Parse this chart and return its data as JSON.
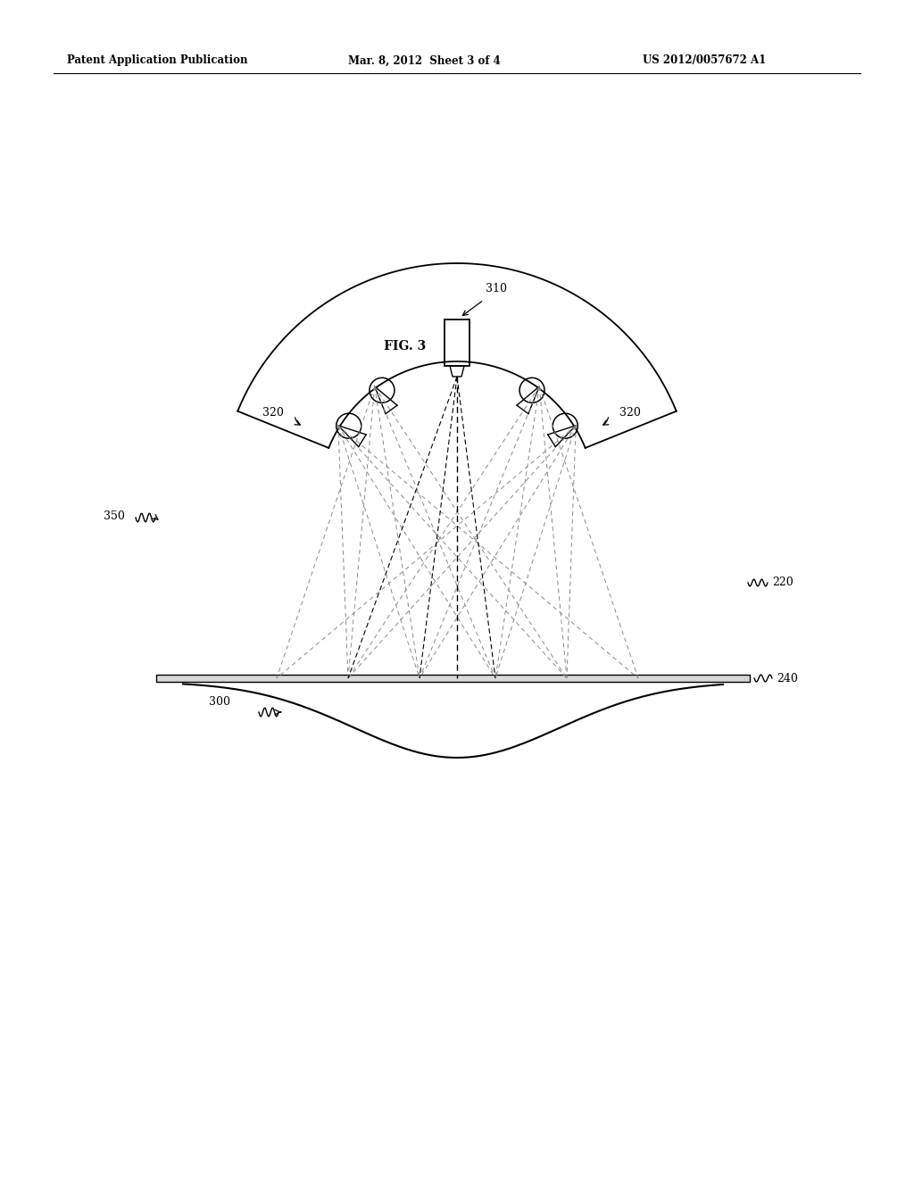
{
  "background_color": "#ffffff",
  "header_left": "Patent Application Publication",
  "header_mid": "Mar. 8, 2012  Sheet 3 of 4",
  "header_right": "US 2012/0057672 A1",
  "fig_label": "FIG. 3",
  "label_310": "310",
  "label_320_left": "320",
  "label_320_right": "320",
  "label_350": "350",
  "label_220": "220",
  "label_240": "240",
  "label_300": "300",
  "line_color": "#000000",
  "dashed_color": "#888888",
  "text_color": "#000000",
  "header_fontsize": 8.5,
  "label_fontsize": 9,
  "fig_label_fontsize": 10
}
